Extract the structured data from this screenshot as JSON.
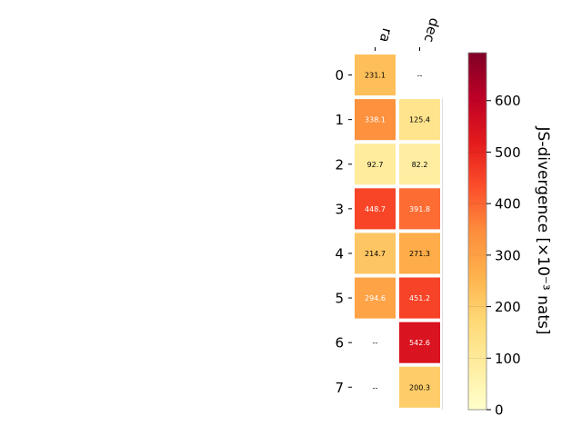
{
  "chart_data": {
    "type": "heatmap",
    "title": "",
    "columns": [
      "ra",
      "dec"
    ],
    "rows": [
      "0",
      "1",
      "2",
      "3",
      "4",
      "5",
      "6",
      "7"
    ],
    "values": [
      [
        231.1,
        null
      ],
      [
        338.1,
        125.4
      ],
      [
        92.7,
        82.2
      ],
      [
        448.7,
        391.8
      ],
      [
        214.7,
        271.3
      ],
      [
        294.6,
        451.2
      ],
      [
        null,
        542.6
      ],
      [
        null,
        200.3
      ]
    ],
    "cell_labels": [
      [
        "231.1",
        "--"
      ],
      [
        "338.1",
        "125.4"
      ],
      [
        "92.7",
        "82.2"
      ],
      [
        "448.7",
        "391.8"
      ],
      [
        "214.7",
        "271.3"
      ],
      [
        "294.6",
        "451.2"
      ],
      [
        "--",
        "542.6"
      ],
      [
        "--",
        "200.3"
      ]
    ],
    "colorbar": {
      "label": "JS-divergence [×10⁻³ nats]",
      "min": 0,
      "max": 693,
      "ticks": [
        0,
        100,
        200,
        300,
        400,
        500,
        600
      ],
      "colormap": "YlOrRd"
    },
    "colormap_stops": [
      "#ffffcc",
      "#ffeda0",
      "#fed976",
      "#feb24c",
      "#fd8d3c",
      "#fc4e2a",
      "#e31a1c",
      "#bd0026",
      "#800026"
    ]
  }
}
